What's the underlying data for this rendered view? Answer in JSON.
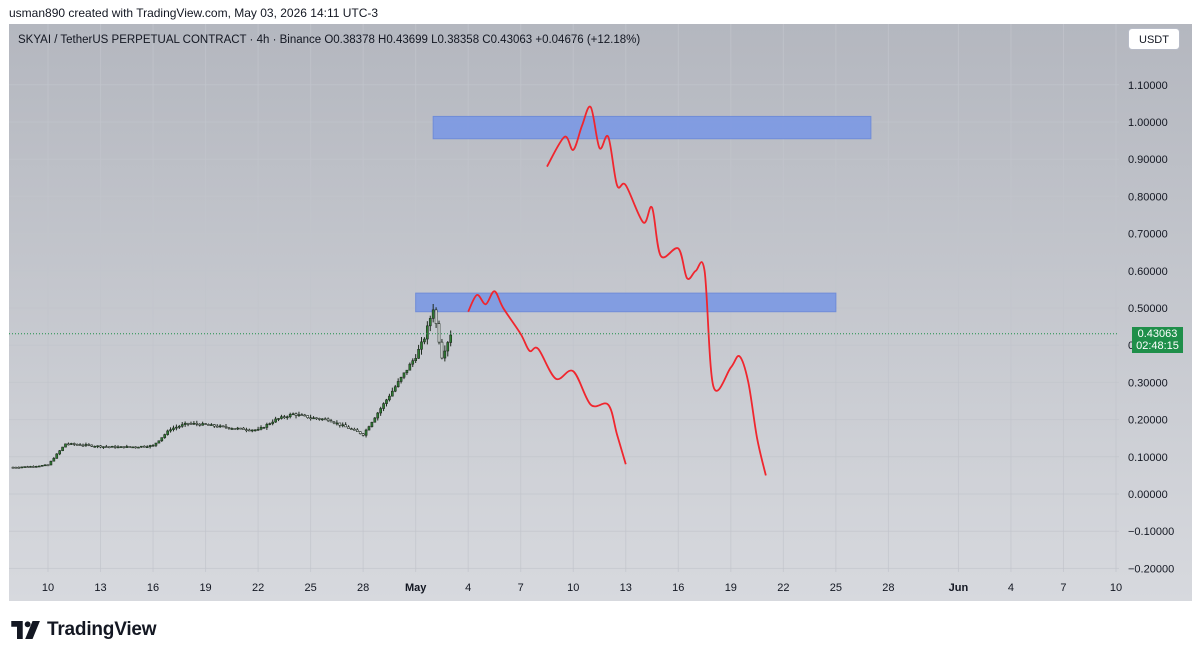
{
  "caption": "usman890 created with TradingView.com, May 03, 2026 14:11 UTC-3",
  "header": {
    "symbol_line": "SKYAI / TetherUS PERPETUAL CONTRACT · 4h · Binance  O0.38378  H0.43699  L0.38358  C0.43063  +0.04676 (+12.18%)",
    "currency_button": "USDT"
  },
  "price_badge": {
    "price": "0.43063",
    "countdown": "02:48:15"
  },
  "footer": {
    "brand": "TradingView"
  },
  "colors": {
    "plot_bg_top": "#b4b7bf",
    "plot_bg_bottom": "#d7d9de",
    "candle_up": "#2e7d32",
    "candle_wick": "#1e2a1e",
    "zone_fill": "#7f9be3",
    "projection": "#f0262e",
    "price_line": "#1f8f4a",
    "badge": "#1f8f4a"
  },
  "chart_data": {
    "type": "candlestick",
    "title": "",
    "xlabel": "",
    "ylabel": "",
    "ylim": [
      -0.22,
      1.2
    ],
    "y_ticks": [
      1.1,
      1.0,
      0.9,
      0.8,
      0.7,
      0.6,
      0.5,
      0.4,
      0.3,
      0.2,
      0.1,
      0.0,
      -0.1,
      -0.2
    ],
    "y_tick_labels": [
      "1.10000",
      "1.00000",
      "0.90000",
      "0.80000",
      "0.70000",
      "0.60000",
      "0.50000",
      "0.40000",
      "0.30000",
      "0.20000",
      "0.10000",
      "0.00000",
      "−0.10000",
      "−0.20000"
    ],
    "x_range": [
      "2026-04-08",
      "2026-06-10"
    ],
    "x_ticks": [
      {
        "label": "10",
        "date": "2026-04-10",
        "bold": false
      },
      {
        "label": "13",
        "date": "2026-04-13",
        "bold": false
      },
      {
        "label": "16",
        "date": "2026-04-16",
        "bold": false
      },
      {
        "label": "19",
        "date": "2026-04-19",
        "bold": false
      },
      {
        "label": "22",
        "date": "2026-04-22",
        "bold": false
      },
      {
        "label": "25",
        "date": "2026-04-25",
        "bold": false
      },
      {
        "label": "28",
        "date": "2026-04-28",
        "bold": false
      },
      {
        "label": "May",
        "date": "2026-05-01",
        "bold": true
      },
      {
        "label": "4",
        "date": "2026-05-04",
        "bold": false
      },
      {
        "label": "7",
        "date": "2026-05-07",
        "bold": false
      },
      {
        "label": "10",
        "date": "2026-05-10",
        "bold": false
      },
      {
        "label": "13",
        "date": "2026-05-13",
        "bold": false
      },
      {
        "label": "16",
        "date": "2026-05-16",
        "bold": false
      },
      {
        "label": "19",
        "date": "2026-05-19",
        "bold": false
      },
      {
        "label": "22",
        "date": "2026-05-22",
        "bold": false
      },
      {
        "label": "25",
        "date": "2026-05-25",
        "bold": false
      },
      {
        "label": "28",
        "date": "2026-05-28",
        "bold": false
      },
      {
        "label": "Jun",
        "date": "2026-06-01",
        "bold": true
      },
      {
        "label": "4",
        "date": "2026-06-04",
        "bold": false
      },
      {
        "label": "7",
        "date": "2026-06-07",
        "bold": false
      },
      {
        "label": "10",
        "date": "2026-06-10",
        "bold": false
      }
    ],
    "last_price": 0.43063,
    "price_path": [
      [
        "2026-04-08",
        0.072
      ],
      [
        "2026-04-09",
        0.074
      ],
      [
        "2026-04-10",
        0.078
      ],
      [
        "2026-04-11",
        0.135
      ],
      [
        "2026-04-12",
        0.132
      ],
      [
        "2026-04-13",
        0.128
      ],
      [
        "2026-04-14",
        0.126
      ],
      [
        "2026-04-15",
        0.127
      ],
      [
        "2026-04-16",
        0.13
      ],
      [
        "2026-04-17",
        0.175
      ],
      [
        "2026-04-18",
        0.19
      ],
      [
        "2026-04-19",
        0.186
      ],
      [
        "2026-04-20",
        0.18
      ],
      [
        "2026-04-21",
        0.175
      ],
      [
        "2026-04-22",
        0.172
      ],
      [
        "2026-04-23",
        0.2
      ],
      [
        "2026-04-24",
        0.215
      ],
      [
        "2026-04-25",
        0.205
      ],
      [
        "2026-04-26",
        0.2
      ],
      [
        "2026-04-27",
        0.18
      ],
      [
        "2026-04-28",
        0.16
      ],
      [
        "2026-04-29",
        0.23
      ],
      [
        "2026-04-30",
        0.3
      ],
      [
        "2026-05-01",
        0.37
      ],
      [
        "2026-05-01T12:00",
        0.42
      ],
      [
        "2026-05-02",
        0.5
      ],
      [
        "2026-05-02T12:00",
        0.37
      ],
      [
        "2026-05-03",
        0.43063
      ]
    ],
    "zones": [
      {
        "from": "2026-05-02",
        "to": "2026-05-27",
        "low": 0.955,
        "high": 1.015
      },
      {
        "from": "2026-05-01",
        "to": "2026-05-25",
        "low": 0.49,
        "high": 0.54
      }
    ],
    "projections": [
      [
        [
          "2026-05-04",
          0.49
        ],
        [
          "2026-05-04T12:00",
          0.535
        ],
        [
          "2026-05-05",
          0.51
        ],
        [
          "2026-05-05T12:00",
          0.545
        ],
        [
          "2026-05-06",
          0.5
        ],
        [
          "2026-05-07",
          0.43
        ],
        [
          "2026-05-07T12:00",
          0.385
        ],
        [
          "2026-05-08",
          0.39
        ],
        [
          "2026-05-09",
          0.31
        ],
        [
          "2026-05-10",
          0.33
        ],
        [
          "2026-05-11",
          0.24
        ],
        [
          "2026-05-12",
          0.24
        ],
        [
          "2026-05-12T12:00",
          0.16
        ],
        [
          "2026-05-13",
          0.08
        ]
      ],
      [
        [
          "2026-05-08T12:00",
          0.88
        ],
        [
          "2026-05-09T12:00",
          0.96
        ],
        [
          "2026-05-10",
          0.925
        ],
        [
          "2026-05-10T12:00",
          0.99
        ],
        [
          "2026-05-11",
          1.04
        ],
        [
          "2026-05-11T12:00",
          0.93
        ],
        [
          "2026-05-12",
          0.96
        ],
        [
          "2026-05-12T12:00",
          0.83
        ],
        [
          "2026-05-13",
          0.83
        ],
        [
          "2026-05-14",
          0.73
        ],
        [
          "2026-05-14T12:00",
          0.77
        ],
        [
          "2026-05-15",
          0.64
        ],
        [
          "2026-05-16",
          0.66
        ],
        [
          "2026-05-16T12:00",
          0.58
        ],
        [
          "2026-05-17",
          0.6
        ],
        [
          "2026-05-17T12:00",
          0.6
        ],
        [
          "2026-05-18",
          0.29
        ],
        [
          "2026-05-19",
          0.34
        ],
        [
          "2026-05-19T12:00",
          0.37
        ],
        [
          "2026-05-20",
          0.3
        ],
        [
          "2026-05-20T12:00",
          0.15
        ],
        [
          "2026-05-21",
          0.05
        ]
      ]
    ]
  }
}
